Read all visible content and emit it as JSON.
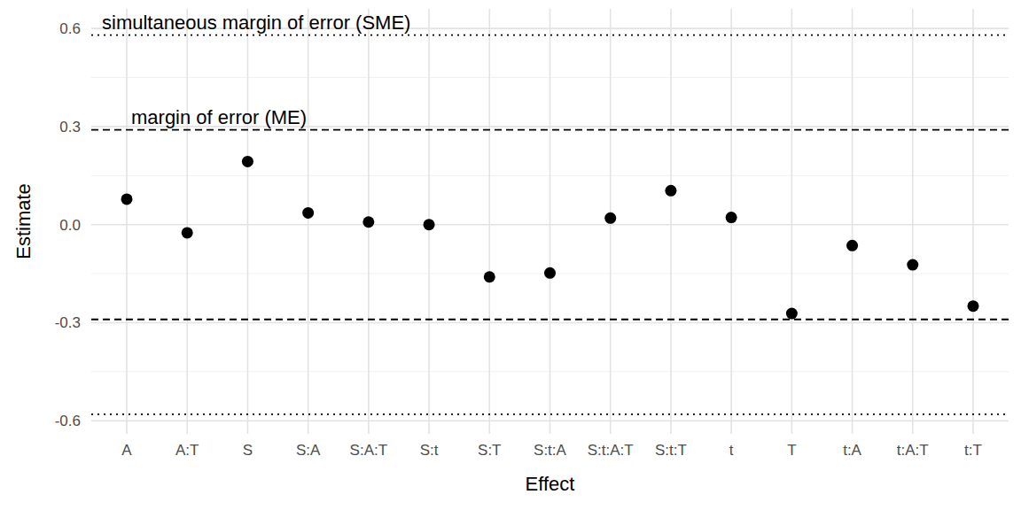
{
  "chart_data": {
    "type": "scatter",
    "x_label": "Effect",
    "y_label": "Estimate",
    "categories": [
      "A",
      "A:T",
      "S",
      "S:A",
      "S:A:T",
      "S:t",
      "S:T",
      "S:t:A",
      "S:t:A:T",
      "S:t:T",
      "t",
      "T",
      "t:A",
      "t:A:T",
      "t:T"
    ],
    "values": [
      0.078,
      -0.025,
      0.193,
      0.036,
      0.008,
      0.0,
      -0.16,
      -0.148,
      0.02,
      0.104,
      0.022,
      -0.272,
      -0.064,
      -0.123,
      -0.249
    ],
    "color": "#000000",
    "marker": "circle",
    "ylim": [
      -0.64,
      0.66
    ],
    "yticks": [
      -0.6,
      -0.3,
      {
        "value": 0,
        "label": "0.0"
      },
      0.3,
      0.6
    ],
    "grid": true,
    "reference_lines": [
      {
        "label": "margin of error (ME)",
        "value": 0.29,
        "line_style": "dashed"
      },
      {
        "label": "simultaneous margin of error (SME)",
        "value": 0.58,
        "line_style": "dotted"
      }
    ]
  }
}
